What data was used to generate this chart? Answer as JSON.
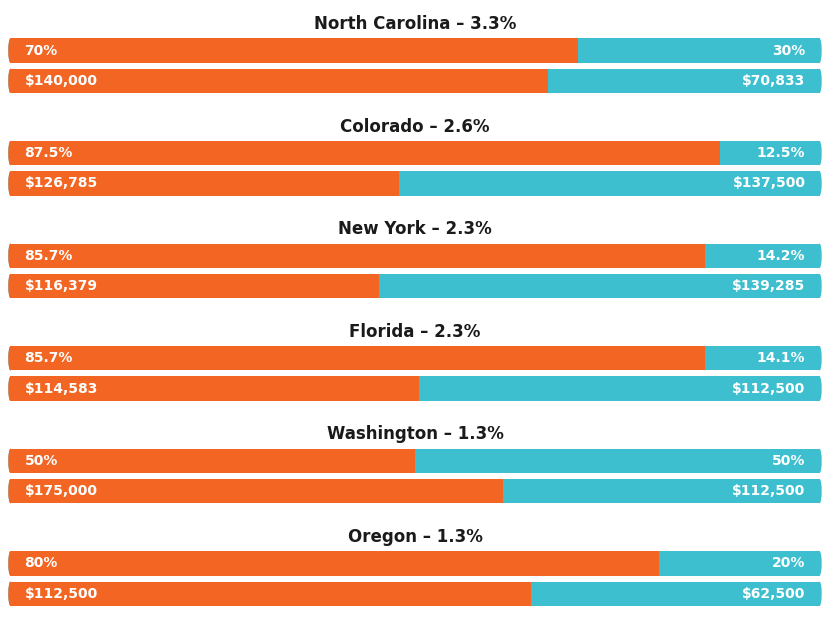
{
  "states": [
    {
      "title": "North Carolina – 3.3%",
      "male_pct": 70,
      "female_pct": 30,
      "male_salary": "$140,000",
      "female_salary": "$70,833",
      "male_salary_val": 140000,
      "female_salary_val": 70833
    },
    {
      "title": "Colorado – 2.6%",
      "male_pct": 87.5,
      "female_pct": 12.5,
      "male_salary": "$126,785",
      "female_salary": "$137,500",
      "male_salary_val": 126785,
      "female_salary_val": 137500
    },
    {
      "title": "New York – 2.3%",
      "male_pct": 85.7,
      "female_pct": 14.2,
      "male_salary": "$116,379",
      "female_salary": "$139,285",
      "male_salary_val": 116379,
      "female_salary_val": 139285
    },
    {
      "title": "Florida – 2.3%",
      "male_pct": 85.7,
      "female_pct": 14.1,
      "male_salary": "$114,583",
      "female_salary": "$112,500",
      "male_salary_val": 114583,
      "female_salary_val": 112500
    },
    {
      "title": "Washington – 1.3%",
      "male_pct": 50,
      "female_pct": 50,
      "male_salary": "$175,000",
      "female_salary": "$112,500",
      "male_salary_val": 175000,
      "female_salary_val": 112500
    },
    {
      "title": "Oregon – 1.3%",
      "male_pct": 80,
      "female_pct": 20,
      "male_salary": "$112,500",
      "female_salary": "$62,500",
      "male_salary_val": 112500,
      "female_salary_val": 62500
    }
  ],
  "male_color": "#F26522",
  "female_color": "#3DBFCF",
  "text_color": "#FFFFFF",
  "title_color": "#1a1a1a",
  "bg_color": "#FFFFFF",
  "title_fontsize": 12,
  "label_fontsize": 10
}
